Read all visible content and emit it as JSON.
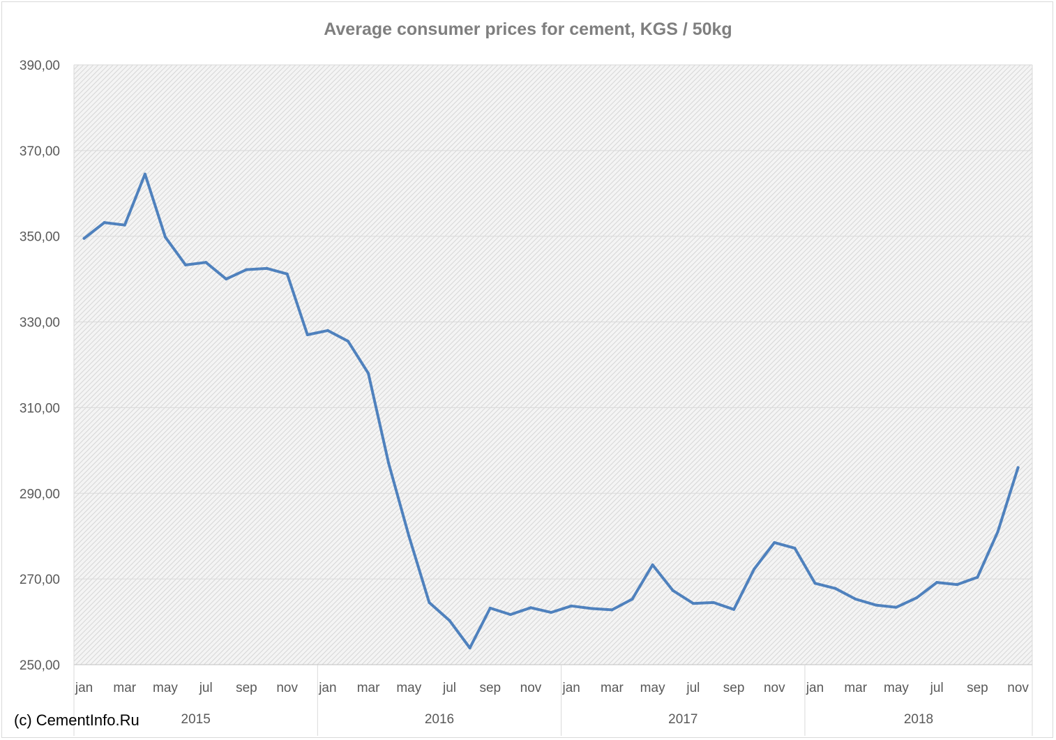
{
  "chart_data": {
    "type": "line",
    "title": "Average consumer prices for cement, KGS / 50kg",
    "xlabel": "",
    "ylabel": "",
    "ylim": [
      250,
      390
    ],
    "yticks": [
      250,
      270,
      290,
      310,
      330,
      350,
      370,
      390
    ],
    "ytick_labels": [
      "250,00",
      "270,00",
      "290,00",
      "310,00",
      "330,00",
      "350,00",
      "370,00",
      "390,00"
    ],
    "grid": "horizontal",
    "years": [
      "2015",
      "2016",
      "2017",
      "2018"
    ],
    "x_month_labels": [
      "jan",
      "mar",
      "may",
      "jul",
      "sep",
      "nov"
    ],
    "categories": [
      "jan 2015",
      "feb 2015",
      "mar 2015",
      "apr 2015",
      "may 2015",
      "jun 2015",
      "jul 2015",
      "aug 2015",
      "sep 2015",
      "oct 2015",
      "nov 2015",
      "dec 2015",
      "jan 2016",
      "feb 2016",
      "mar 2016",
      "apr 2016",
      "may 2016",
      "jun 2016",
      "jul 2016",
      "aug 2016",
      "sep 2016",
      "oct 2016",
      "nov 2016",
      "dec 2016",
      "jan 2017",
      "feb 2017",
      "mar 2017",
      "apr 2017",
      "may 2017",
      "jun 2017",
      "jul 2017",
      "aug 2017",
      "sep 2017",
      "oct 2017",
      "nov 2017",
      "dec 2017",
      "jan 2018",
      "feb 2018",
      "mar 2018",
      "apr 2018",
      "may 2018",
      "jun 2018",
      "jul 2018",
      "aug 2018",
      "sep 2018",
      "oct 2018",
      "nov 2018"
    ],
    "series": [
      {
        "values": [
          349.5,
          353.2,
          352.6,
          364.5,
          349.8,
          343.3,
          343.9,
          340.0,
          342.2,
          342.5,
          341.2,
          327.0,
          328.0,
          325.5,
          318.0,
          297.0,
          280.0,
          264.5,
          260.3,
          253.9,
          263.2,
          261.7,
          263.3,
          262.2,
          263.7,
          263.1,
          262.8,
          265.3,
          273.3,
          267.3,
          264.3,
          264.5,
          262.9,
          272.3,
          278.5,
          277.2,
          269.0,
          267.8,
          265.3,
          263.9,
          263.4,
          265.6,
          269.2,
          268.7,
          270.4,
          281.0,
          296.0
        ],
        "color": "#4f81bd"
      }
    ]
  },
  "footer": {
    "copyright": "(c) CementInfo.Ru"
  }
}
